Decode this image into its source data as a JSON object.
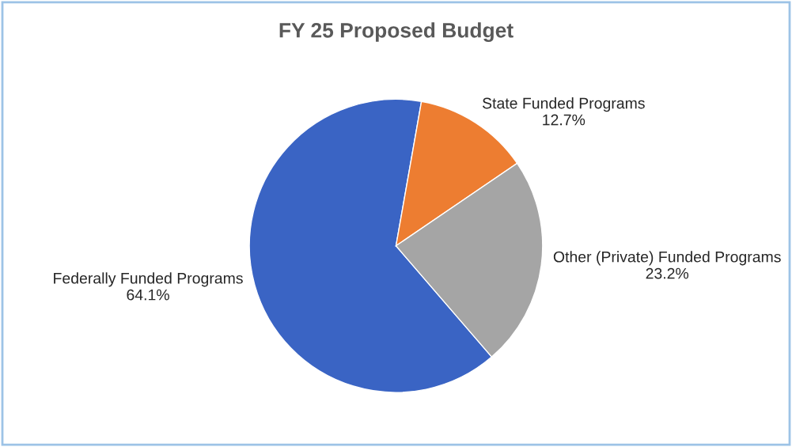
{
  "chart_data": {
    "type": "pie",
    "title": "FY 25 Proposed Budget",
    "categories": [
      "Federally Funded Programs",
      "State Funded Programs",
      "Other (Private) Funded Programs"
    ],
    "values": [
      64.1,
      12.7,
      23.2
    ],
    "value_labels": [
      "64.1%",
      "12.7%",
      "23.2%"
    ],
    "colors": [
      "#3a64c4",
      "#ed7d31",
      "#a5a5a5"
    ]
  }
}
